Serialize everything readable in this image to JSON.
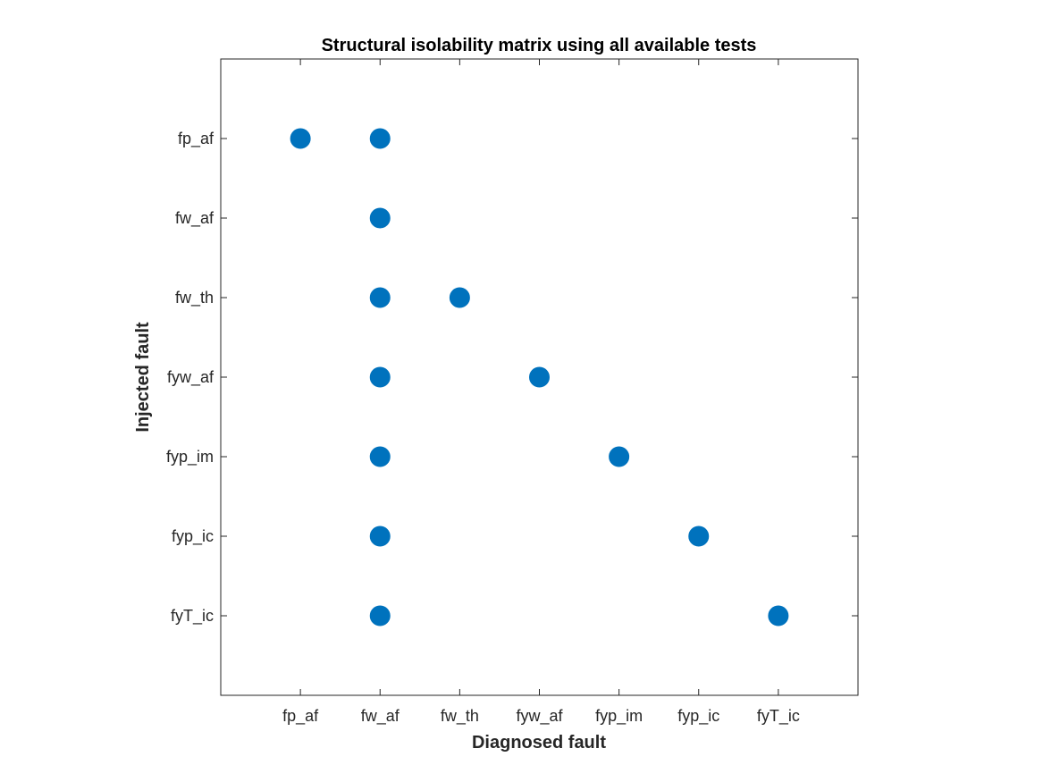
{
  "chart_data": {
    "type": "scatter",
    "title": "Structural isolability matrix using all available tests",
    "xlabel": "Diagnosed fault",
    "ylabel": "Injected fault",
    "x_categories": [
      "fp_af",
      "fw_af",
      "fw_th",
      "fyw_af",
      "fyp_im",
      "fyp_ic",
      "fyT_ic"
    ],
    "y_categories": [
      "fp_af",
      "fw_af",
      "fw_th",
      "fyw_af",
      "fyp_im",
      "fyp_ic",
      "fyT_ic"
    ],
    "points": [
      {
        "x": "fp_af",
        "y": "fp_af"
      },
      {
        "x": "fw_af",
        "y": "fp_af"
      },
      {
        "x": "fw_af",
        "y": "fw_af"
      },
      {
        "x": "fw_af",
        "y": "fw_th"
      },
      {
        "x": "fw_th",
        "y": "fw_th"
      },
      {
        "x": "fw_af",
        "y": "fyw_af"
      },
      {
        "x": "fyw_af",
        "y": "fyw_af"
      },
      {
        "x": "fw_af",
        "y": "fyp_im"
      },
      {
        "x": "fyp_im",
        "y": "fyp_im"
      },
      {
        "x": "fw_af",
        "y": "fyp_ic"
      },
      {
        "x": "fyp_ic",
        "y": "fyp_ic"
      },
      {
        "x": "fw_af",
        "y": "fyT_ic"
      },
      {
        "x": "fyT_ic",
        "y": "fyT_ic"
      }
    ],
    "xlim": [
      0,
      8
    ],
    "ylim": [
      0,
      8
    ],
    "y_reversed": true,
    "grid": false,
    "box": true,
    "marker_color": "#0072BD"
  }
}
